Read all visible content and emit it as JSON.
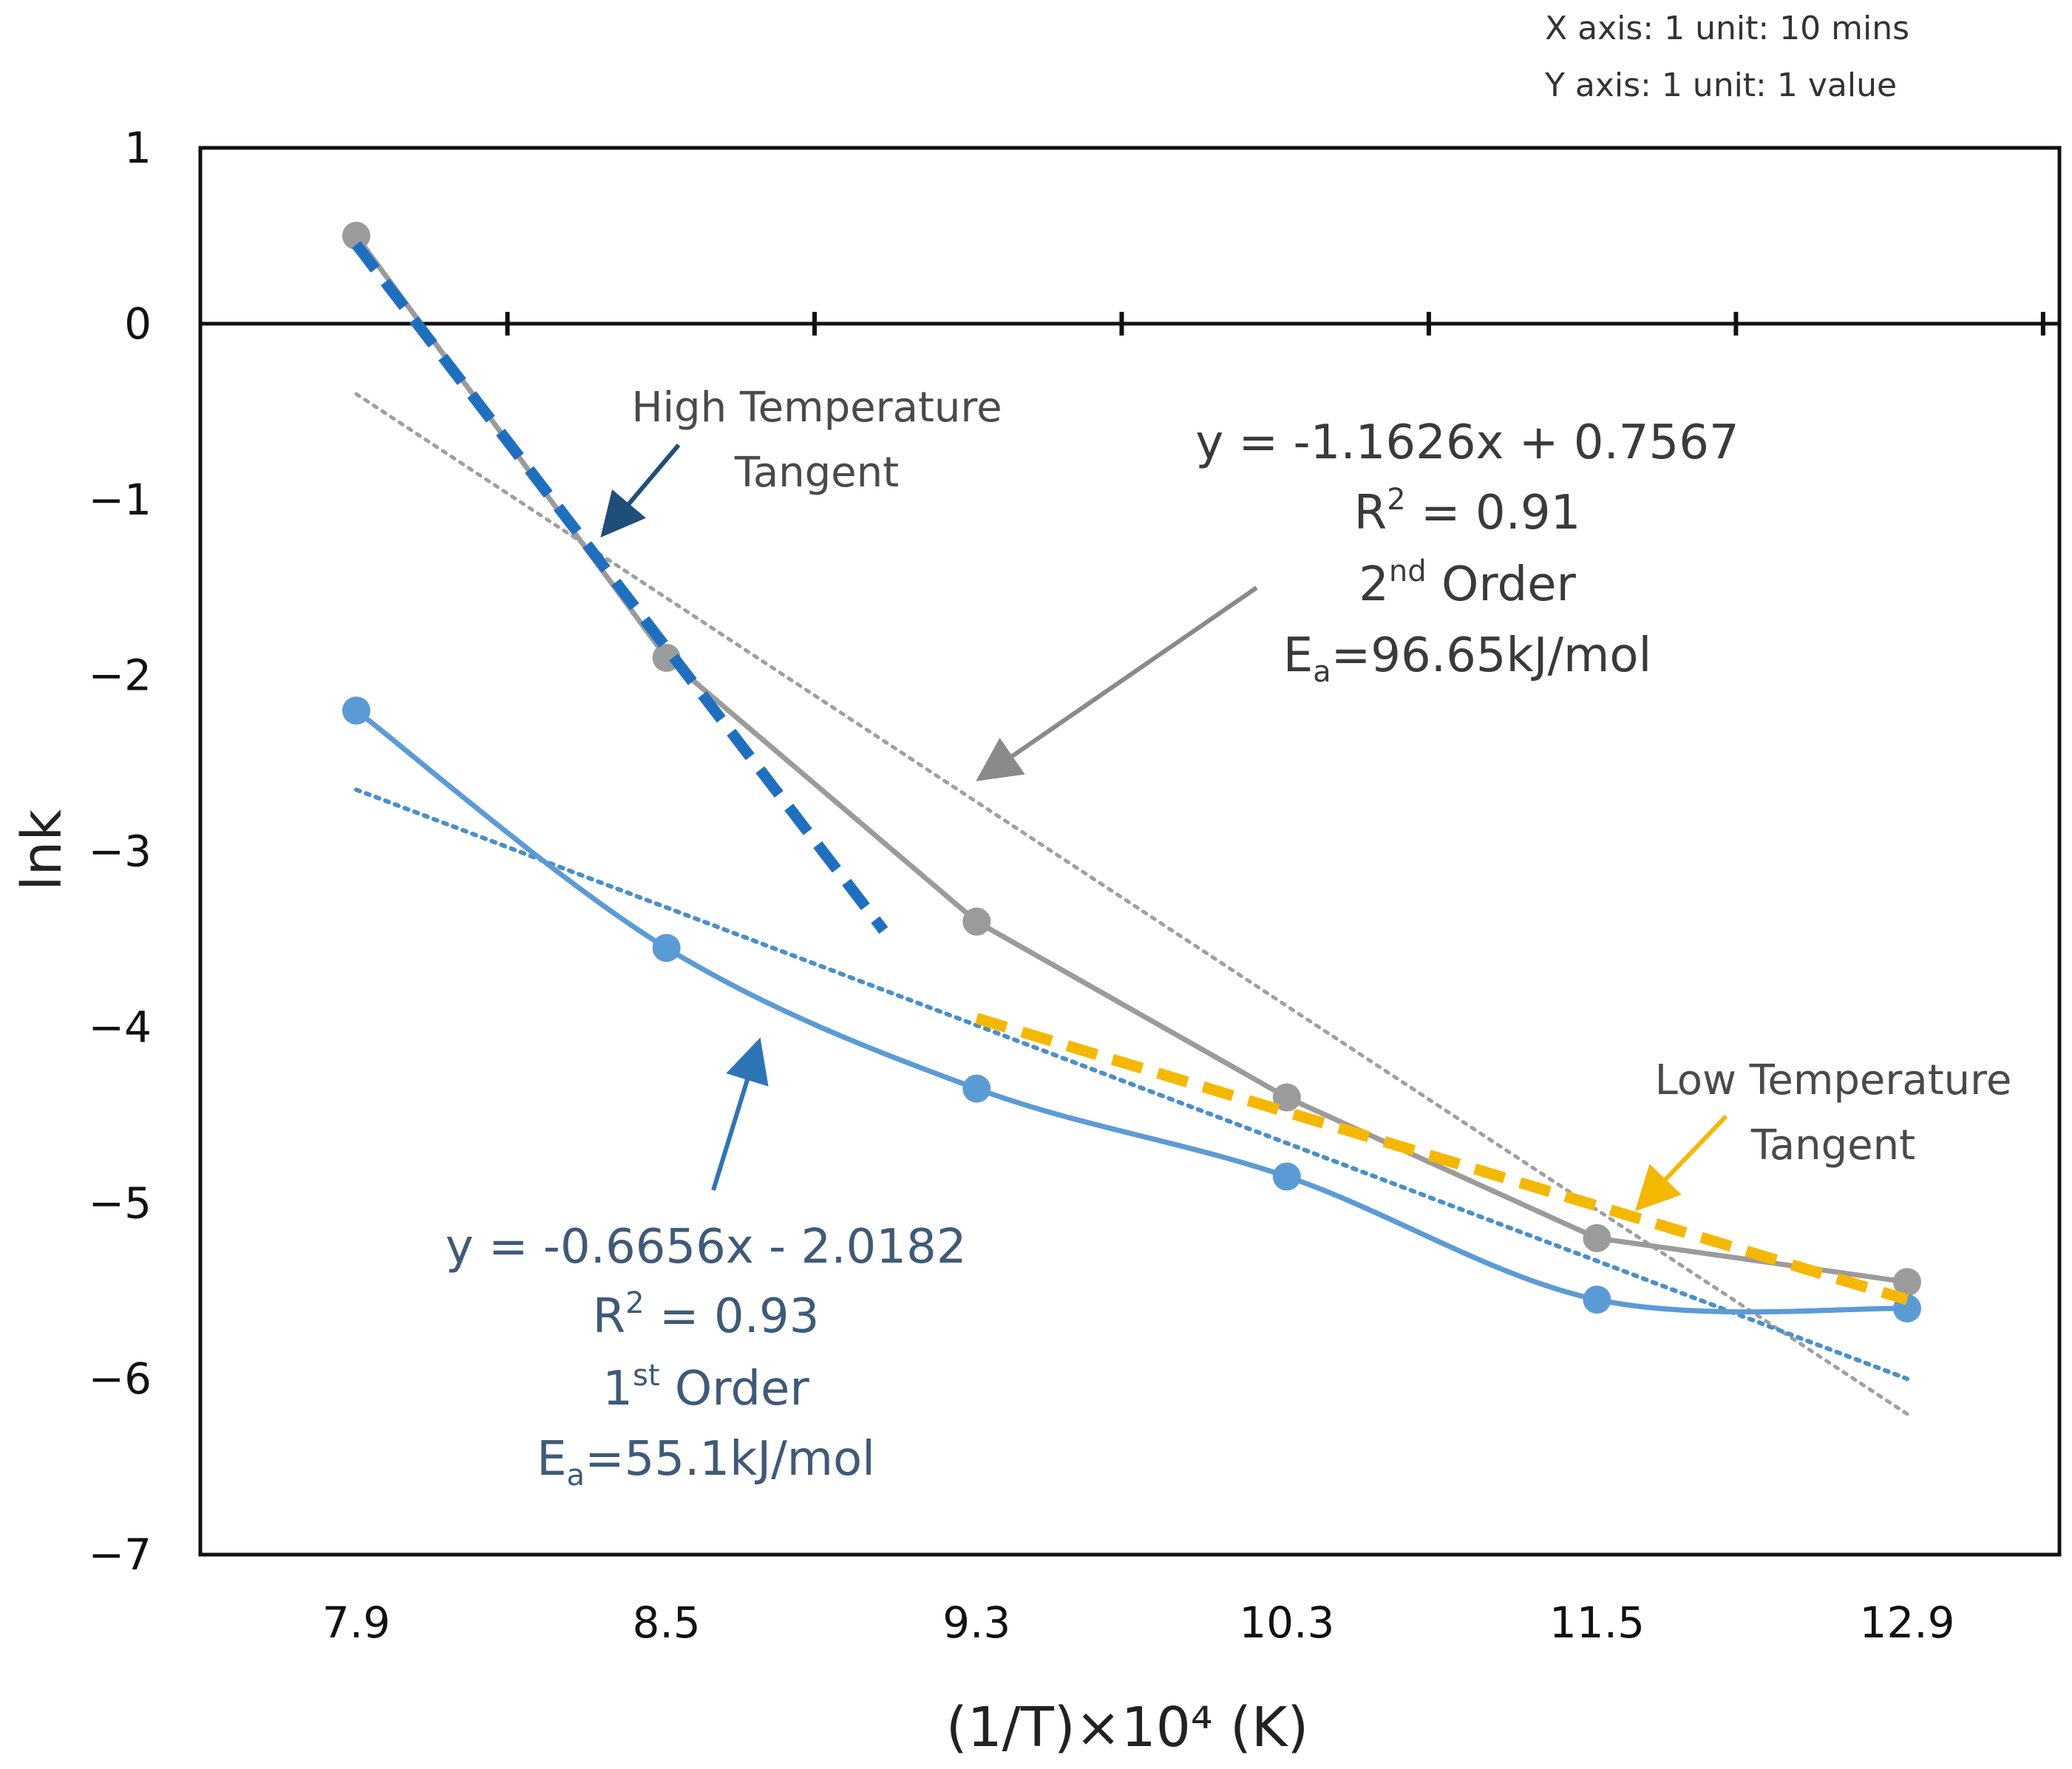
{
  "chart_data": {
    "type": "line",
    "x_categories": [
      "7.9",
      "8.5",
      "9.3",
      "10.3",
      "11.5",
      "12.9"
    ],
    "xlabel": "(1/T)×10⁴ (K)",
    "ylabel": "lnk",
    "ylim": [
      -7,
      1
    ],
    "yticks": [
      "1",
      "0",
      "−1",
      "−2",
      "−3",
      "−4",
      "−5",
      "−6",
      "−7"
    ],
    "yticks_values": [
      1,
      0,
      -1,
      -2,
      -3,
      -4,
      -5,
      -6,
      -7
    ],
    "axis_note": [
      "X axis: 1 unit: 10 mins",
      "Y axis: 1 unit: 1 value"
    ],
    "series": [
      {
        "name": "2nd Order",
        "color": "#9b9b9b",
        "values": [
          0.5,
          -1.9,
          -3.4,
          -4.4,
          -5.2,
          -5.45
        ]
      },
      {
        "name": "1st Order",
        "color": "#5b9bd5",
        "values": [
          -2.2,
          -3.55,
          -4.35,
          -4.85,
          -5.55,
          -5.6
        ]
      }
    ],
    "trendlines": [
      {
        "name": "2nd Order fit",
        "color": "#a0a0a0",
        "style": "dotted",
        "x_start": 0,
        "x_end": 5,
        "y_start": -0.4,
        "y_end": -6.2
      },
      {
        "name": "1st Order fit",
        "color": "#4a90c8",
        "style": "dotted",
        "x_start": 0,
        "x_end": 5,
        "y_start": -2.65,
        "y_end": -6.0
      }
    ],
    "tangents": [
      {
        "name": "High Temperature Tangent",
        "color": "#1f6fc1",
        "style": "dashed",
        "x_start": 0,
        "x_end": 1.7,
        "y_start": 0.45,
        "y_end": -3.45
      },
      {
        "name": "Low Temperature Tangent",
        "color": "#f5b800",
        "style": "dashed",
        "x_start": 2.0,
        "x_end": 5.0,
        "y_start": -3.95,
        "y_end": -5.55
      }
    ],
    "annotations": {
      "high_tangent": [
        "High Temperature",
        "Tangent"
      ],
      "low_tangent": [
        "Low Temperature",
        "Tangent"
      ],
      "second_order": {
        "equation": "y = -1.1626x + 0.7567",
        "r2_prefix": "R",
        "r2_sup": "2",
        "r2_value": " = 0.91",
        "order_num": "2",
        "order_sup": "nd",
        "order_word": " Order",
        "ea_prefix": "E",
        "ea_sub": "a",
        "ea_value": "=96.65kJ/mol"
      },
      "first_order": {
        "equation": "y = -0.6656x - 2.0182",
        "r2_prefix": "R",
        "r2_sup": "2",
        "r2_value": " = 0.93",
        "order_num": "1",
        "order_sup": "st",
        "order_word": " Order",
        "ea_prefix": "E",
        "ea_sub": "a",
        "ea_value": "=55.1kJ/mol"
      }
    }
  }
}
